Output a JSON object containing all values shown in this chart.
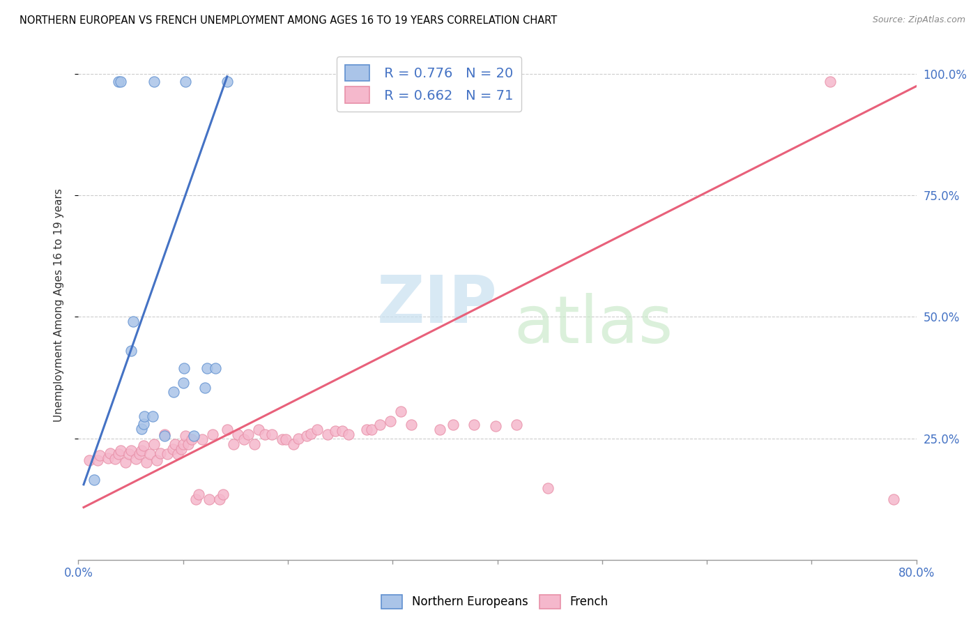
{
  "title": "NORTHERN EUROPEAN VS FRENCH UNEMPLOYMENT AMONG AGES 16 TO 19 YEARS CORRELATION CHART",
  "source": "Source: ZipAtlas.com",
  "ylabel": "Unemployment Among Ages 16 to 19 years",
  "xlim": [
    0.0,
    0.8
  ],
  "ylim": [
    0.0,
    1.05
  ],
  "blue_color": "#aac4e8",
  "pink_color": "#f5b8cc",
  "blue_edge_color": "#6090d0",
  "pink_edge_color": "#e890a8",
  "blue_line_color": "#4472c4",
  "pink_line_color": "#e8607a",
  "legend_R_blue": "R = 0.776",
  "legend_N_blue": "N = 20",
  "legend_R_pink": "R = 0.662",
  "legend_N_pink": "N = 71",
  "blue_scatter_x": [
    0.015,
    0.038,
    0.04,
    0.05,
    0.052,
    0.06,
    0.062,
    0.063,
    0.071,
    0.072,
    0.082,
    0.091,
    0.1,
    0.101,
    0.102,
    0.11,
    0.121,
    0.123,
    0.131,
    0.142
  ],
  "blue_scatter_y": [
    0.165,
    0.985,
    0.985,
    0.43,
    0.49,
    0.27,
    0.28,
    0.295,
    0.295,
    0.985,
    0.255,
    0.345,
    0.365,
    0.395,
    0.985,
    0.255,
    0.355,
    0.395,
    0.395,
    0.985
  ],
  "pink_scatter_x": [
    0.01,
    0.018,
    0.02,
    0.028,
    0.03,
    0.035,
    0.038,
    0.04,
    0.045,
    0.048,
    0.05,
    0.055,
    0.058,
    0.06,
    0.062,
    0.065,
    0.068,
    0.072,
    0.075,
    0.078,
    0.082,
    0.085,
    0.09,
    0.092,
    0.095,
    0.098,
    0.1,
    0.102,
    0.105,
    0.108,
    0.112,
    0.115,
    0.118,
    0.125,
    0.128,
    0.135,
    0.138,
    0.142,
    0.148,
    0.152,
    0.158,
    0.162,
    0.168,
    0.172,
    0.178,
    0.185,
    0.195,
    0.198,
    0.205,
    0.21,
    0.218,
    0.222,
    0.228,
    0.238,
    0.245,
    0.252,
    0.258,
    0.275,
    0.28,
    0.288,
    0.298,
    0.308,
    0.318,
    0.345,
    0.358,
    0.378,
    0.398,
    0.418,
    0.448,
    0.718,
    0.778
  ],
  "pink_scatter_y": [
    0.205,
    0.205,
    0.215,
    0.21,
    0.22,
    0.208,
    0.218,
    0.225,
    0.2,
    0.218,
    0.225,
    0.208,
    0.218,
    0.225,
    0.235,
    0.2,
    0.218,
    0.238,
    0.205,
    0.22,
    0.258,
    0.218,
    0.228,
    0.238,
    0.218,
    0.228,
    0.238,
    0.255,
    0.238,
    0.248,
    0.125,
    0.135,
    0.248,
    0.125,
    0.258,
    0.125,
    0.135,
    0.268,
    0.238,
    0.258,
    0.248,
    0.258,
    0.238,
    0.268,
    0.258,
    0.258,
    0.248,
    0.248,
    0.238,
    0.25,
    0.255,
    0.26,
    0.268,
    0.258,
    0.265,
    0.265,
    0.258,
    0.268,
    0.268,
    0.278,
    0.285,
    0.305,
    0.278,
    0.268,
    0.278,
    0.278,
    0.275,
    0.278,
    0.148,
    0.985,
    0.125
  ],
  "blue_trendline_x": [
    0.005,
    0.142
  ],
  "blue_trendline_y": [
    0.155,
    0.995
  ],
  "pink_trendline_x": [
    0.005,
    0.8
  ],
  "pink_trendline_y": [
    0.108,
    0.975
  ]
}
